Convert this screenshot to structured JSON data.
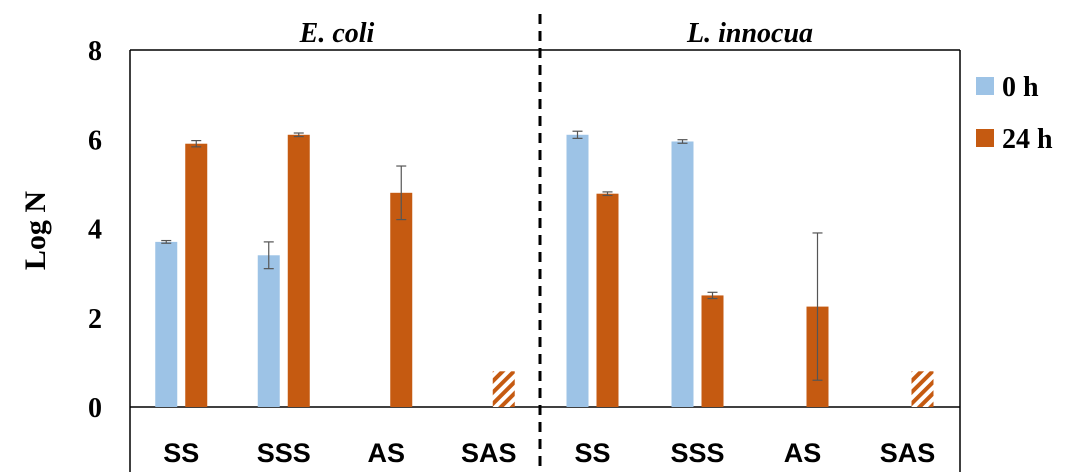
{
  "chart_data": {
    "type": "bar",
    "ylabel": "Log N",
    "ylim": [
      0,
      8
    ],
    "yticks": [
      "0",
      "2",
      "4",
      "6",
      "8"
    ],
    "grid": false,
    "legend_position": "right",
    "colors": {
      "0 h": "#9dc3e6",
      "24 h": "#c55a11"
    },
    "panels": [
      {
        "title": "E. coli",
        "categories": [
          "SS",
          "SSS",
          "AS",
          "SAS"
        ],
        "series": [
          {
            "name": "0 h",
            "values": [
              3.7,
              3.4,
              null,
              null
            ],
            "errors": [
              0.03,
              0.3,
              null,
              null
            ]
          },
          {
            "name": "24 h",
            "values": [
              5.9,
              6.1,
              4.8,
              0.8
            ],
            "errors": [
              0.07,
              0.04,
              0.6,
              null
            ],
            "hatched": [
              false,
              false,
              false,
              true
            ]
          }
        ]
      },
      {
        "title": "L. innocua",
        "categories": [
          "SS",
          "SSS",
          "AS",
          "SAS"
        ],
        "series": [
          {
            "name": "0 h",
            "values": [
              6.1,
              5.95,
              null,
              null
            ],
            "errors": [
              0.08,
              0.04,
              null,
              null
            ]
          },
          {
            "name": "24 h",
            "values": [
              4.78,
              2.5,
              2.25,
              0.8
            ],
            "errors": [
              0.04,
              0.07,
              1.65,
              null
            ],
            "hatched": [
              false,
              false,
              false,
              true
            ]
          }
        ]
      }
    ],
    "legend": [
      {
        "label": "0 h"
      },
      {
        "label": "24 h"
      }
    ]
  }
}
